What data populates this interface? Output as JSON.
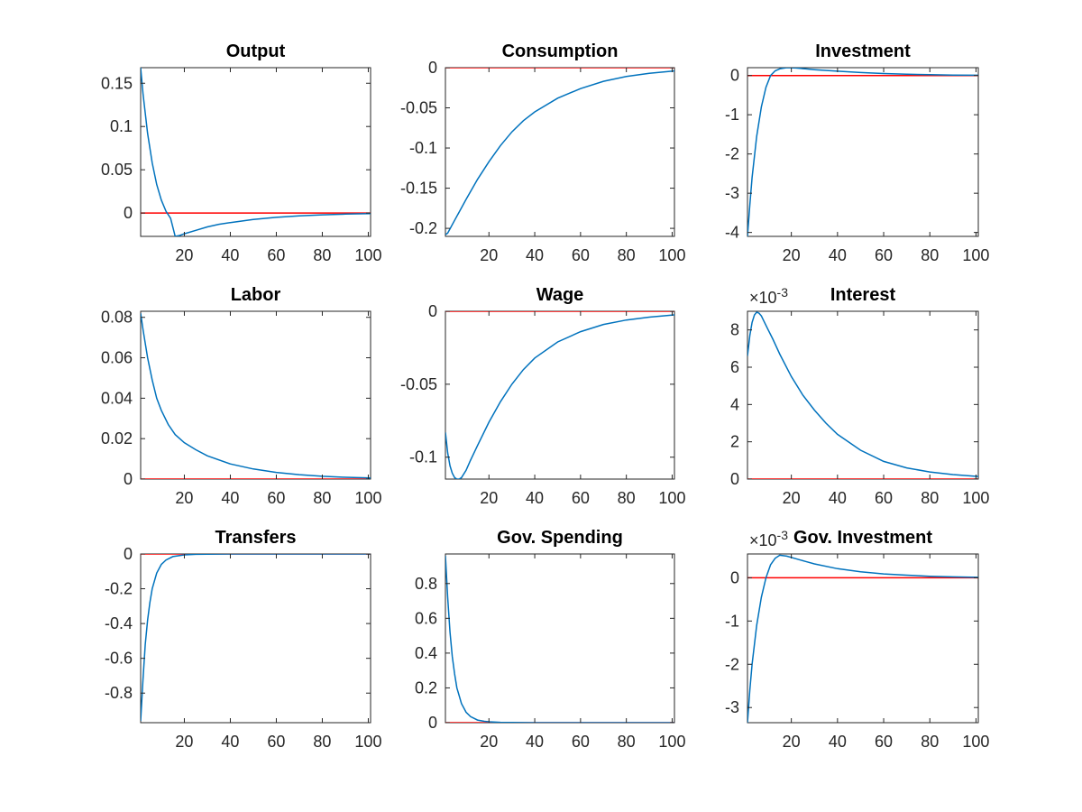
{
  "chart_data": [
    {
      "type": "line",
      "title": "Output",
      "xlim": [
        1,
        101
      ],
      "ylim": [
        -0.027,
        0.168
      ],
      "xticks": [
        20,
        40,
        60,
        80,
        100
      ],
      "yticks": [
        0,
        0.05,
        0.1,
        0.15
      ],
      "ytick_labels": [
        "0",
        "0.05",
        "0.1",
        "0.15"
      ],
      "exponent_label": "",
      "series": [
        {
          "role": "response",
          "color": "#0072BD",
          "x": [
            1,
            2,
            4,
            6,
            8,
            10,
            12,
            14,
            16,
            18,
            20,
            25,
            30,
            35,
            40,
            50,
            60,
            70,
            80,
            90,
            101
          ],
          "y": [
            0.168,
            0.138,
            0.092,
            0.058,
            0.033,
            0.015,
            0.002,
            -0.006,
            -0.027,
            -0.026,
            -0.024,
            -0.02,
            -0.016,
            -0.013,
            -0.011,
            -0.0075,
            -0.005,
            -0.0033,
            -0.0021,
            -0.0012,
            -0.0006
          ]
        },
        {
          "role": "zero",
          "color": "#FF0000",
          "x": [
            1,
            101
          ],
          "y": [
            0,
            0
          ]
        }
      ]
    },
    {
      "type": "line",
      "title": "Consumption",
      "xlim": [
        1,
        101
      ],
      "ylim": [
        -0.21,
        0
      ],
      "xticks": [
        20,
        40,
        60,
        80,
        100
      ],
      "yticks": [
        -0.2,
        -0.15,
        -0.1,
        -0.05,
        0
      ],
      "ytick_labels": [
        "-0.2",
        "-0.15",
        "-0.1",
        "-0.05",
        "0"
      ],
      "exponent_label": "",
      "series": [
        {
          "role": "response",
          "color": "#0072BD",
          "x": [
            1,
            2,
            5,
            10,
            15,
            20,
            25,
            30,
            35,
            40,
            50,
            60,
            70,
            80,
            90,
            101
          ],
          "y": [
            -0.208,
            -0.206,
            -0.19,
            -0.164,
            -0.139,
            -0.117,
            -0.097,
            -0.08,
            -0.066,
            -0.055,
            -0.038,
            -0.026,
            -0.017,
            -0.011,
            -0.007,
            -0.004
          ]
        },
        {
          "role": "zero",
          "color": "#FF0000",
          "x": [
            1,
            101
          ],
          "y": [
            0,
            0
          ]
        }
      ]
    },
    {
      "type": "line",
      "title": "Investment",
      "xlim": [
        1,
        101
      ],
      "ylim": [
        -4.1,
        0.2
      ],
      "xticks": [
        20,
        40,
        60,
        80,
        100
      ],
      "yticks": [
        -4,
        -3,
        -2,
        -1,
        0
      ],
      "ytick_labels": [
        "-4",
        "-3",
        "-2",
        "-1",
        "0"
      ],
      "exponent_label": "",
      "series": [
        {
          "role": "response",
          "color": "#0072BD",
          "x": [
            1,
            2,
            3,
            5,
            7,
            9,
            11,
            13,
            15,
            18,
            22,
            26,
            30,
            40,
            50,
            60,
            70,
            80,
            90,
            101
          ],
          "y": [
            -4.1,
            -3.3,
            -2.6,
            -1.55,
            -0.8,
            -0.3,
            0.0,
            0.12,
            0.17,
            0.2,
            0.19,
            0.17,
            0.15,
            0.11,
            0.075,
            0.05,
            0.033,
            0.02,
            0.012,
            0.006
          ]
        },
        {
          "role": "zero",
          "color": "#FF0000",
          "x": [
            1,
            101
          ],
          "y": [
            0,
            0
          ]
        }
      ]
    },
    {
      "type": "line",
      "title": "Labor",
      "xlim": [
        1,
        101
      ],
      "ylim": [
        0,
        0.083
      ],
      "xticks": [
        20,
        40,
        60,
        80,
        100
      ],
      "yticks": [
        0,
        0.02,
        0.04,
        0.06,
        0.08
      ],
      "ytick_labels": [
        "0",
        "0.02",
        "0.04",
        "0.06",
        "0.08"
      ],
      "exponent_label": "",
      "series": [
        {
          "role": "response",
          "color": "#0072BD",
          "x": [
            1,
            2,
            4,
            6,
            8,
            10,
            13,
            16,
            20,
            25,
            30,
            40,
            50,
            60,
            70,
            80,
            90,
            101
          ],
          "y": [
            0.082,
            0.074,
            0.06,
            0.049,
            0.04,
            0.034,
            0.027,
            0.022,
            0.018,
            0.0145,
            0.0115,
            0.0075,
            0.005,
            0.0033,
            0.0022,
            0.0014,
            0.0009,
            0.0006
          ]
        },
        {
          "role": "zero",
          "color": "#FF0000",
          "x": [
            1,
            101
          ],
          "y": [
            0,
            0
          ]
        }
      ]
    },
    {
      "type": "line",
      "title": "Wage",
      "xlim": [
        1,
        101
      ],
      "ylim": [
        -0.115,
        0
      ],
      "xticks": [
        20,
        40,
        60,
        80,
        100
      ],
      "yticks": [
        -0.1,
        -0.05,
        0
      ],
      "ytick_labels": [
        "-0.1",
        "-0.05",
        "0"
      ],
      "exponent_label": "",
      "series": [
        {
          "role": "response",
          "color": "#0072BD",
          "x": [
            1,
            2,
            3,
            4,
            5,
            6,
            7,
            8,
            10,
            12,
            15,
            20,
            25,
            30,
            35,
            40,
            50,
            60,
            70,
            80,
            90,
            101
          ],
          "y": [
            -0.083,
            -0.097,
            -0.106,
            -0.111,
            -0.114,
            -0.115,
            -0.115,
            -0.114,
            -0.109,
            -0.102,
            -0.092,
            -0.076,
            -0.062,
            -0.05,
            -0.04,
            -0.032,
            -0.021,
            -0.014,
            -0.009,
            -0.006,
            -0.004,
            -0.0025
          ]
        },
        {
          "role": "zero",
          "color": "#FF0000",
          "x": [
            1,
            101
          ],
          "y": [
            0,
            0
          ]
        }
      ]
    },
    {
      "type": "line",
      "title": "Interest",
      "xlim": [
        1,
        101
      ],
      "ylim": [
        0,
        9
      ],
      "xticks": [
        20,
        40,
        60,
        80,
        100
      ],
      "yticks": [
        0,
        2,
        4,
        6,
        8
      ],
      "ytick_labels": [
        "0",
        "2",
        "4",
        "6",
        "8"
      ],
      "exponent_label": "×10-3",
      "series": [
        {
          "role": "response",
          "color": "#0072BD",
          "x": [
            1,
            2,
            3,
            4,
            5,
            6,
            7,
            8,
            10,
            12,
            15,
            20,
            25,
            30,
            35,
            40,
            50,
            60,
            70,
            80,
            90,
            101
          ],
          "y": [
            6.6,
            7.7,
            8.4,
            8.8,
            8.95,
            8.9,
            8.75,
            8.5,
            8.0,
            7.5,
            6.7,
            5.5,
            4.5,
            3.7,
            3.0,
            2.4,
            1.55,
            0.95,
            0.6,
            0.38,
            0.24,
            0.14
          ]
        },
        {
          "role": "zero",
          "color": "#FF0000",
          "x": [
            1,
            101
          ],
          "y": [
            0,
            0
          ]
        }
      ]
    },
    {
      "type": "line",
      "title": "Transfers",
      "xlim": [
        1,
        101
      ],
      "ylim": [
        -0.97,
        0
      ],
      "xticks": [
        20,
        40,
        60,
        80,
        100
      ],
      "yticks": [
        -0.8,
        -0.6,
        -0.4,
        -0.2,
        0
      ],
      "ytick_labels": [
        "-0.8",
        "-0.6",
        "-0.4",
        "-0.2",
        "0"
      ],
      "exponent_label": "",
      "series": [
        {
          "role": "response",
          "color": "#0072BD",
          "x": [
            1,
            2,
            3,
            4,
            5,
            6,
            8,
            10,
            12,
            15,
            20,
            25,
            30,
            40,
            60,
            80,
            101
          ],
          "y": [
            -0.96,
            -0.72,
            -0.52,
            -0.38,
            -0.28,
            -0.2,
            -0.11,
            -0.06,
            -0.035,
            -0.015,
            -0.005,
            -0.002,
            -0.001,
            0,
            0,
            0,
            0
          ]
        },
        {
          "role": "zero",
          "color": "#FF0000",
          "x": [
            1,
            101
          ],
          "y": [
            0,
            0
          ]
        }
      ]
    },
    {
      "type": "line",
      "title": "Gov. Spending",
      "xlim": [
        1,
        101
      ],
      "ylim": [
        0,
        0.97
      ],
      "xticks": [
        20,
        40,
        60,
        80,
        100
      ],
      "yticks": [
        0,
        0.2,
        0.4,
        0.6,
        0.8
      ],
      "ytick_labels": [
        "0",
        "0.2",
        "0.4",
        "0.6",
        "0.8"
      ],
      "exponent_label": "",
      "series": [
        {
          "role": "response",
          "color": "#0072BD",
          "x": [
            1,
            2,
            3,
            4,
            5,
            6,
            8,
            10,
            12,
            15,
            18,
            20,
            25,
            30,
            40,
            60,
            80,
            101
          ],
          "y": [
            0.96,
            0.72,
            0.52,
            0.38,
            0.28,
            0.2,
            0.11,
            0.06,
            0.035,
            0.015,
            0.008,
            0.005,
            0.002,
            0.001,
            0,
            0,
            0,
            0
          ]
        },
        {
          "role": "zero",
          "color": "#FF0000",
          "x": [
            1,
            101
          ],
          "y": [
            0,
            0
          ]
        }
      ]
    },
    {
      "type": "line",
      "title": "Gov. Investment",
      "xlim": [
        1,
        101
      ],
      "ylim": [
        -3.35,
        0.55
      ],
      "xticks": [
        20,
        40,
        60,
        80,
        100
      ],
      "yticks": [
        -3,
        -2,
        -1,
        0
      ],
      "ytick_labels": [
        "-3",
        "-2",
        "-1",
        "0"
      ],
      "exponent_label": "×10-3",
      "series": [
        {
          "role": "response",
          "color": "#0072BD",
          "x": [
            1,
            2,
            3,
            5,
            7,
            9,
            11,
            13,
            15,
            18,
            22,
            26,
            30,
            40,
            50,
            60,
            70,
            80,
            90,
            101
          ],
          "y": [
            -3.35,
            -2.6,
            -2.0,
            -1.1,
            -0.45,
            0.0,
            0.3,
            0.45,
            0.52,
            0.5,
            0.44,
            0.38,
            0.32,
            0.21,
            0.14,
            0.09,
            0.06,
            0.035,
            0.02,
            0.01
          ]
        },
        {
          "role": "zero",
          "color": "#FF0000",
          "x": [
            1,
            101
          ],
          "y": [
            0,
            0
          ]
        }
      ]
    }
  ]
}
